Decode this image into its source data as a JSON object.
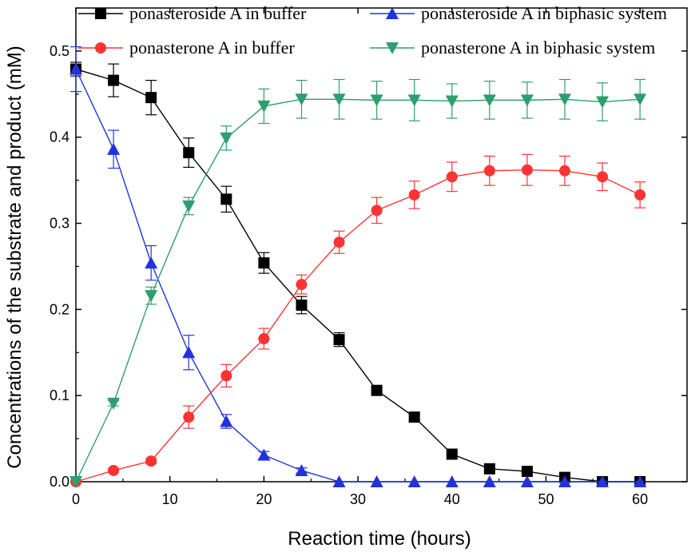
{
  "chart_data": {
    "type": "line",
    "title": "",
    "xlabel": "Reaction time (hours)",
    "ylabel": "Concentrations of the substrate and product (mM)",
    "xlim": [
      0,
      65
    ],
    "ylim": [
      0,
      0.55
    ],
    "xticks": [
      "0",
      "10",
      "20",
      "30",
      "40",
      "50",
      "60"
    ],
    "yticks": [
      "0.0",
      "0.1",
      "0.2",
      "0.3",
      "0.4",
      "0.5"
    ],
    "legend_position": "top",
    "grid": false,
    "series": [
      {
        "name": "ponasteroside A in buffer",
        "color": "#000000",
        "marker": "square",
        "x": [
          0,
          4,
          8,
          12,
          16,
          20,
          24,
          28,
          32,
          36,
          40,
          44,
          48,
          52,
          56,
          60
        ],
        "y": [
          0.479,
          0.466,
          0.446,
          0.382,
          0.328,
          0.254,
          0.205,
          0.165,
          0.106,
          0.075,
          0.032,
          0.015,
          0.012,
          0.005,
          0.0,
          0.0
        ],
        "err": [
          0.008,
          0.019,
          0.02,
          0.017,
          0.015,
          0.012,
          0.01,
          0.008,
          0.003,
          0.003,
          0.002,
          0.002,
          0.002,
          0.001,
          0.0,
          0.0
        ]
      },
      {
        "name": "ponasteroside A in biphasic system",
        "color": "#2233dd",
        "marker": "triangle-up",
        "x": [
          0,
          4,
          8,
          12,
          16,
          20,
          24,
          28,
          32,
          36,
          40,
          44,
          48,
          52,
          56,
          60
        ],
        "y": [
          0.479,
          0.386,
          0.254,
          0.15,
          0.07,
          0.031,
          0.013,
          0.0,
          0.0,
          0.0,
          0.0,
          0.0,
          0.0,
          0.0,
          0.0,
          0.0
        ],
        "err": [
          0.026,
          0.022,
          0.02,
          0.02,
          0.008,
          0.004,
          0.003,
          0.0,
          0.0,
          0.0,
          0.0,
          0.0,
          0.0,
          0.0,
          0.0,
          0.0
        ]
      },
      {
        "name": "ponasterone A in buffer",
        "color": "#ff3333",
        "marker": "circle",
        "x": [
          0,
          4,
          8,
          12,
          16,
          20,
          24,
          28,
          32,
          36,
          40,
          44,
          48,
          52,
          56,
          60
        ],
        "y": [
          0.0,
          0.013,
          0.024,
          0.075,
          0.123,
          0.166,
          0.229,
          0.278,
          0.315,
          0.333,
          0.354,
          0.361,
          0.362,
          0.361,
          0.354,
          0.333
        ],
        "err": [
          0.0,
          0.002,
          0.003,
          0.013,
          0.013,
          0.012,
          0.011,
          0.013,
          0.015,
          0.016,
          0.017,
          0.017,
          0.018,
          0.017,
          0.016,
          0.015
        ]
      },
      {
        "name": "ponasterone A in biphasic system",
        "color": "#2e9e6e",
        "marker": "triangle-down",
        "x": [
          0,
          4,
          8,
          12,
          16,
          20,
          24,
          28,
          32,
          36,
          40,
          44,
          48,
          52,
          56,
          60
        ],
        "y": [
          0.0,
          0.091,
          0.216,
          0.32,
          0.399,
          0.436,
          0.444,
          0.444,
          0.443,
          0.443,
          0.442,
          0.443,
          0.443,
          0.444,
          0.441,
          0.444
        ],
        "err": [
          0.0,
          0.003,
          0.01,
          0.01,
          0.014,
          0.02,
          0.022,
          0.023,
          0.022,
          0.024,
          0.02,
          0.022,
          0.021,
          0.023,
          0.022,
          0.023
        ]
      }
    ]
  }
}
